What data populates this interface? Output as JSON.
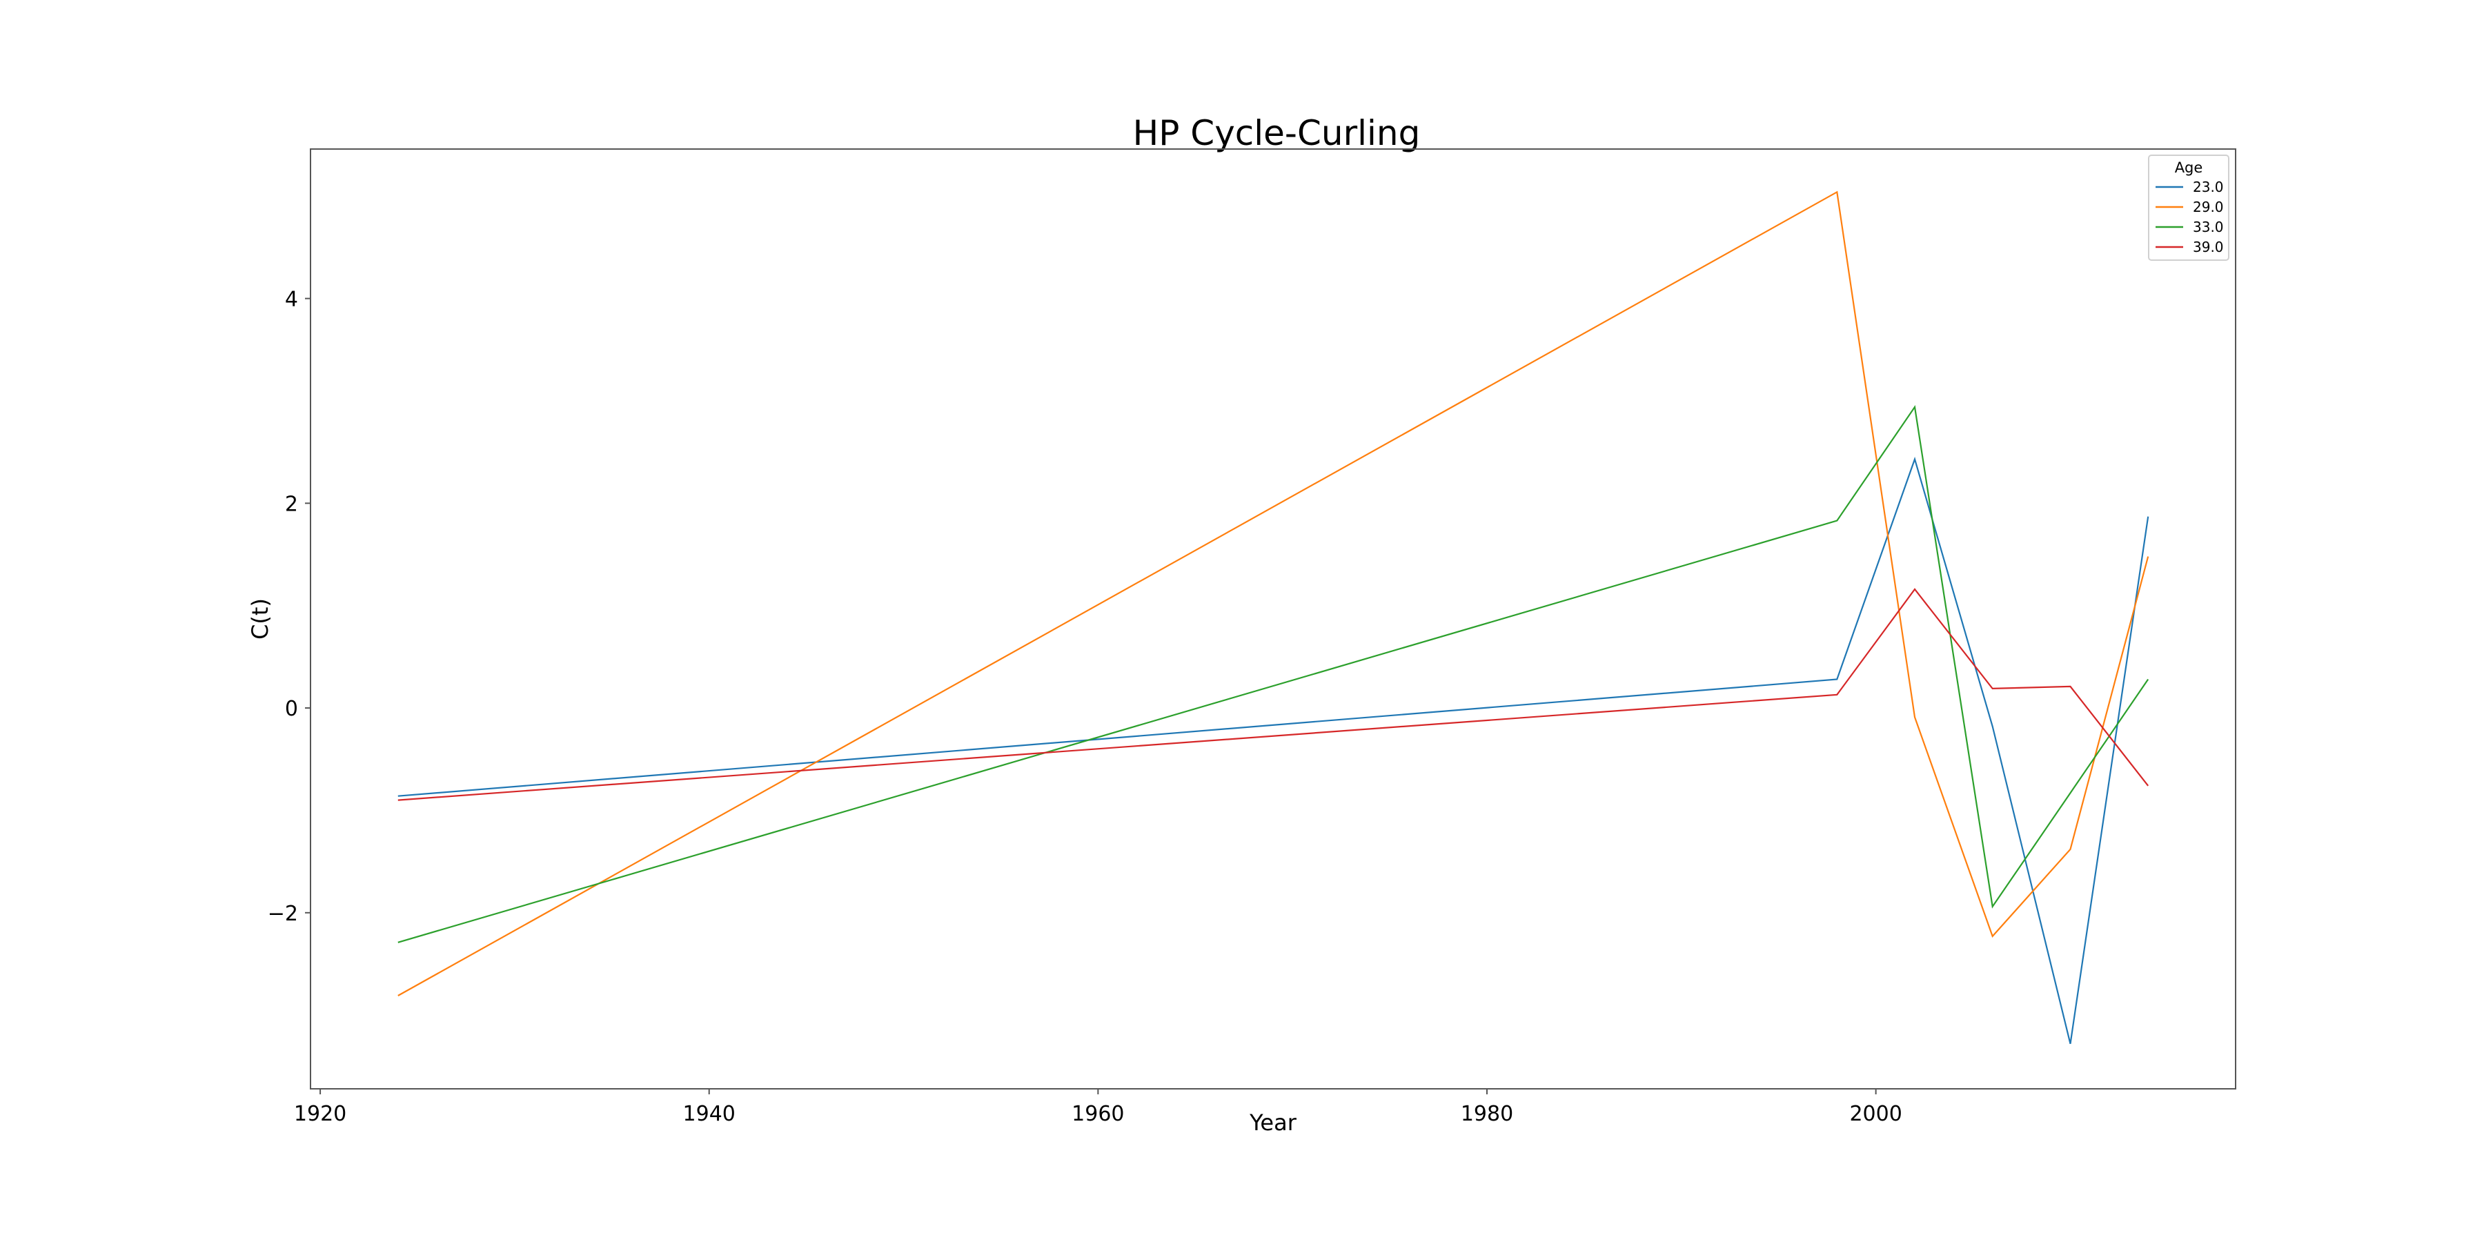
{
  "chart_data": {
    "type": "line",
    "title": "HP Cycle-Curling",
    "xlabel": "Year",
    "ylabel": "C(t)",
    "xlim": [
      1919.5,
      2018.5
    ],
    "ylim": [
      -3.72,
      5.46
    ],
    "xticks": [
      1920,
      1940,
      1960,
      1980,
      2000
    ],
    "yticks": [
      -2,
      0,
      2,
      4
    ],
    "x": [
      1924,
      1998,
      2002,
      2006,
      2010,
      2014
    ],
    "grid": false,
    "legend": {
      "title": "Age",
      "position": "top-right"
    },
    "series": [
      {
        "name": "23.0",
        "color": "#1f77b4",
        "values": [
          -0.86,
          0.28,
          2.43,
          -0.18,
          -3.28,
          1.87
        ]
      },
      {
        "name": "29.0",
        "color": "#ff7f0e",
        "values": [
          -2.81,
          5.04,
          -0.09,
          -2.23,
          -1.38,
          1.48
        ]
      },
      {
        "name": "33.0",
        "color": "#2ca02c",
        "values": [
          -2.29,
          1.83,
          2.94,
          -1.94,
          -0.83,
          0.28
        ]
      },
      {
        "name": "39.0",
        "color": "#d62728",
        "values": [
          -0.9,
          0.13,
          1.16,
          0.19,
          0.21,
          -0.76
        ]
      }
    ]
  }
}
